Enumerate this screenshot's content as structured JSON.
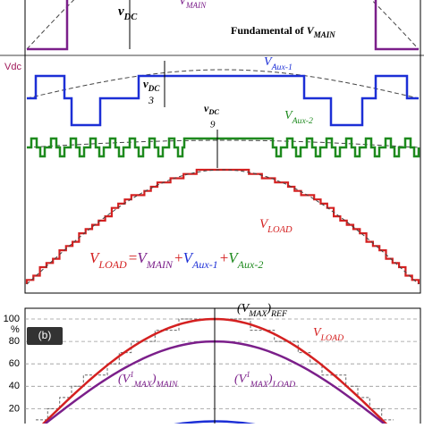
{
  "panel_a": {
    "main_label": {
      "v": "V",
      "sub": "MAIN"
    },
    "vdc_label": {
      "v": "v",
      "sub": "DC"
    },
    "fundamental": {
      "text": "Fundamental of ",
      "v": "V",
      "sub": "MAIN"
    },
    "vdc_side": "Vdc",
    "aux1": {
      "v": "V",
      "sub": "Aux-1"
    },
    "aux1_step": {
      "v": "v",
      "sub": "DC",
      "den": "3"
    },
    "aux2": {
      "v": "V",
      "sub": "Aux-2"
    },
    "aux2_step": {
      "v": "v",
      "sub": "DC",
      "den": "9"
    },
    "load": {
      "v": "V",
      "sub": "LOAD"
    },
    "equation": {
      "terms": [
        {
          "v": "V",
          "sub": "LOAD"
        },
        {
          "v": "V",
          "sub": "MAIN"
        },
        {
          "v": "V",
          "sub": "Aux-1"
        },
        {
          "v": "V",
          "sub": "Aux-2"
        }
      ],
      "ops": [
        "=",
        "+",
        "+"
      ]
    }
  },
  "panel_b": {
    "label": "(b)",
    "unit": "%",
    "ticks": [
      "100",
      "80",
      "60",
      "40",
      "20"
    ],
    "ref": {
      "open": "(V",
      "sub1": "MAX",
      "close": ")",
      "sub2": "REF"
    },
    "load": {
      "v": "V",
      "sub": "LOAD"
    },
    "main": {
      "open": "(V",
      "sup": "1",
      "sub1": "MAX",
      "close": ")",
      "sub2": "MAIN"
    },
    "load_fund": {
      "open": "(V",
      "sup": "1",
      "sub1": "MAX",
      "close": ")",
      "sub2": "LOAD"
    }
  }
}
